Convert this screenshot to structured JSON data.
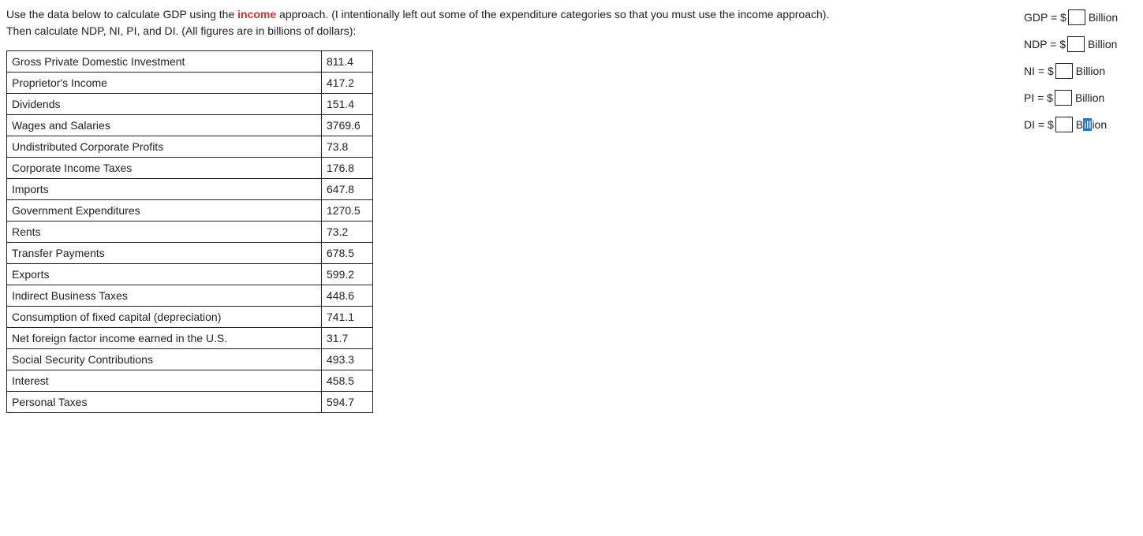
{
  "instructions": {
    "line1_part1": "Use the data below to calculate GDP using the ",
    "line1_income": "income",
    "line1_part2": " approach.  (I intentionally left out some of the expenditure categories so that you must use the income approach).",
    "line2": "Then calculate NDP, NI, PI, and DI. (All figures are in billions of dollars):"
  },
  "table": {
    "rows": [
      {
        "label": "Gross Private Domestic Investment",
        "value": "811.4"
      },
      {
        "label": "Proprietor's Income",
        "value": "417.2"
      },
      {
        "label": "Dividends",
        "value": "151.4"
      },
      {
        "label": "Wages and Salaries",
        "value": "3769.6"
      },
      {
        "label": "Undistributed Corporate Profits",
        "value": "73.8"
      },
      {
        "label": "Corporate Income Taxes",
        "value": "176.8"
      },
      {
        "label": "Imports",
        "value": "647.8"
      },
      {
        "label": "Government Expenditures",
        "value": "1270.5"
      },
      {
        "label": "Rents",
        "value": "73.2"
      },
      {
        "label": "Transfer Payments",
        "value": "678.5"
      },
      {
        "label": "Exports",
        "value": "599.2"
      },
      {
        "label": "Indirect Business Taxes",
        "value": "448.6"
      },
      {
        "label": "Consumption of fixed capital (depreciation)",
        "value": "741.1"
      },
      {
        "label": "Net foreign factor income earned in the U.S.",
        "value": "31.7"
      },
      {
        "label": "Social Security Contributions",
        "value": "493.3"
      },
      {
        "label": "Interest",
        "value": "458.5"
      },
      {
        "label": "Personal Taxes",
        "value": "594.7"
      }
    ]
  },
  "answers": {
    "gdp": {
      "label": "GDP = $",
      "unit": "Billion"
    },
    "ndp": {
      "label": "NDP = $",
      "unit": "Billion"
    },
    "ni": {
      "label": "NI = $",
      "unit": "Billion"
    },
    "pi": {
      "label": "PI = $",
      "unit": "Billion"
    },
    "di": {
      "label": "DI = $",
      "unit_pre": "B",
      "unit_highlight": "ill",
      "unit_post": "ion"
    }
  },
  "colors": {
    "income_red": "#d32f2f",
    "highlight_blue": "#1976d2",
    "text": "#212121",
    "border": "#212121",
    "background": "#ffffff"
  }
}
